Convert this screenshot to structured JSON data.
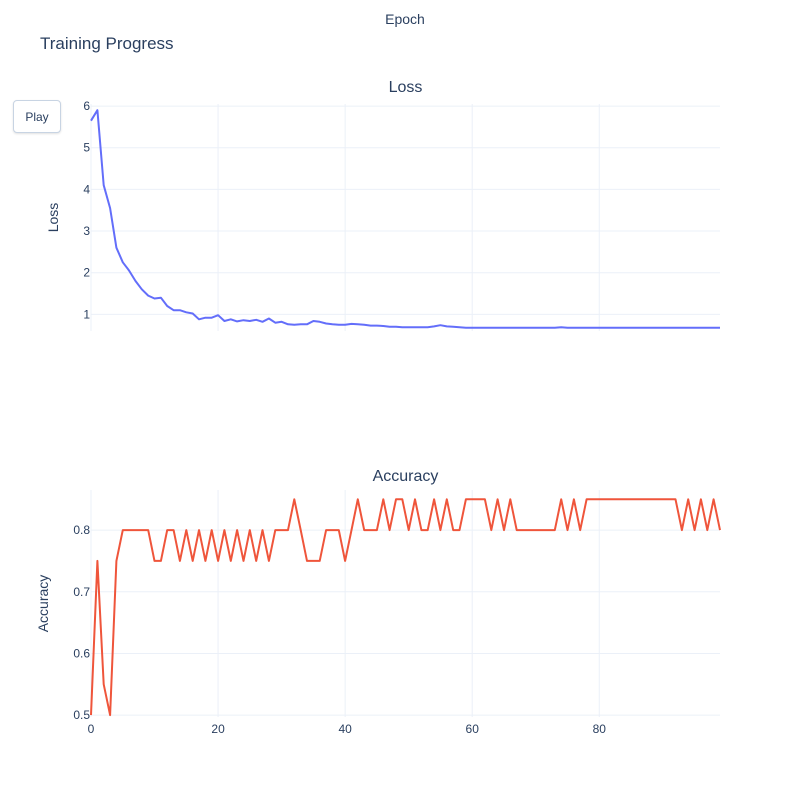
{
  "title": "Training Progress",
  "slider_label": "Epoch",
  "play_label": "Play",
  "colors": {
    "loss": "#636efa",
    "accuracy": "#ef553b",
    "grid": "#ebf0f8",
    "text": "#2a3f5f"
  },
  "chart_data": [
    {
      "type": "line",
      "title": "Loss",
      "xlabel": "",
      "ylabel": "Loss",
      "grid": true,
      "xlim": [
        0,
        99
      ],
      "ylim": [
        0.6,
        6.05
      ],
      "yticks": [
        1,
        2,
        3,
        4,
        5,
        6
      ],
      "series": [
        {
          "x": [
            0,
            1,
            2,
            3,
            4,
            5,
            6,
            7,
            8,
            9,
            10,
            11,
            12,
            13,
            14,
            15,
            16,
            17,
            18,
            19,
            20,
            21,
            22,
            23,
            24,
            25,
            26,
            27,
            28,
            29,
            30,
            31,
            32,
            33,
            34,
            35,
            36,
            37,
            38,
            39,
            40,
            41,
            42,
            43,
            44,
            45,
            46,
            47,
            48,
            49,
            50,
            51,
            52,
            53,
            54,
            55,
            56,
            57,
            58,
            59,
            60,
            61,
            62,
            63,
            64,
            65,
            66,
            67,
            68,
            69,
            70,
            71,
            72,
            73,
            74,
            75,
            76,
            77,
            78,
            79,
            80,
            81,
            82,
            83,
            84,
            85,
            86,
            87,
            88,
            89,
            90,
            91,
            92,
            93,
            94,
            95,
            96,
            97,
            98,
            99
          ],
          "values": [
            5.65,
            5.9,
            4.1,
            3.55,
            2.6,
            2.25,
            2.05,
            1.8,
            1.6,
            1.45,
            1.38,
            1.4,
            1.2,
            1.1,
            1.1,
            1.05,
            1.02,
            0.88,
            0.92,
            0.92,
            0.98,
            0.84,
            0.88,
            0.83,
            0.86,
            0.84,
            0.87,
            0.82,
            0.9,
            0.8,
            0.82,
            0.76,
            0.75,
            0.76,
            0.76,
            0.84,
            0.82,
            0.78,
            0.76,
            0.75,
            0.75,
            0.77,
            0.76,
            0.75,
            0.73,
            0.73,
            0.72,
            0.7,
            0.7,
            0.69,
            0.69,
            0.69,
            0.69,
            0.69,
            0.71,
            0.74,
            0.71,
            0.7,
            0.69,
            0.68,
            0.68,
            0.68,
            0.68,
            0.68,
            0.68,
            0.68,
            0.68,
            0.68,
            0.68,
            0.68,
            0.68,
            0.68,
            0.68,
            0.68,
            0.69,
            0.68,
            0.68,
            0.68,
            0.68,
            0.68,
            0.68,
            0.68,
            0.68,
            0.68,
            0.68,
            0.68,
            0.68,
            0.68,
            0.68,
            0.68,
            0.68,
            0.68,
            0.68,
            0.68,
            0.68,
            0.68,
            0.68,
            0.68,
            0.68,
            0.68
          ]
        }
      ]
    },
    {
      "type": "line",
      "title": "Accuracy",
      "xlabel": "",
      "ylabel": "Accuracy",
      "grid": true,
      "xlim": [
        0,
        99
      ],
      "ylim": [
        0.497,
        0.865
      ],
      "yticks": [
        0.5,
        0.6,
        0.7,
        0.8
      ],
      "xticks": [
        0,
        20,
        40,
        60,
        80
      ],
      "series": [
        {
          "x": [
            0,
            1,
            2,
            3,
            4,
            5,
            6,
            7,
            8,
            9,
            10,
            11,
            12,
            13,
            14,
            15,
            16,
            17,
            18,
            19,
            20,
            21,
            22,
            23,
            24,
            25,
            26,
            27,
            28,
            29,
            30,
            31,
            32,
            33,
            34,
            35,
            36,
            37,
            38,
            39,
            40,
            41,
            42,
            43,
            44,
            45,
            46,
            47,
            48,
            49,
            50,
            51,
            52,
            53,
            54,
            55,
            56,
            57,
            58,
            59,
            60,
            61,
            62,
            63,
            64,
            65,
            66,
            67,
            68,
            69,
            70,
            71,
            72,
            73,
            74,
            75,
            76,
            77,
            78,
            79,
            80,
            81,
            82,
            83,
            84,
            85,
            86,
            87,
            88,
            89,
            90,
            91,
            92,
            93,
            94,
            95,
            96,
            97,
            98,
            99
          ],
          "values": [
            0.5,
            0.75,
            0.55,
            0.5,
            0.75,
            0.8,
            0.8,
            0.8,
            0.8,
            0.8,
            0.75,
            0.75,
            0.8,
            0.8,
            0.75,
            0.8,
            0.75,
            0.8,
            0.75,
            0.8,
            0.75,
            0.8,
            0.75,
            0.8,
            0.75,
            0.8,
            0.75,
            0.8,
            0.75,
            0.8,
            0.8,
            0.8,
            0.85,
            0.8,
            0.75,
            0.75,
            0.75,
            0.8,
            0.8,
            0.8,
            0.75,
            0.8,
            0.85,
            0.8,
            0.8,
            0.8,
            0.85,
            0.8,
            0.85,
            0.85,
            0.8,
            0.85,
            0.8,
            0.8,
            0.85,
            0.8,
            0.85,
            0.8,
            0.8,
            0.85,
            0.85,
            0.85,
            0.85,
            0.8,
            0.85,
            0.8,
            0.85,
            0.8,
            0.8,
            0.8,
            0.8,
            0.8,
            0.8,
            0.8,
            0.85,
            0.8,
            0.85,
            0.8,
            0.85,
            0.85,
            0.85,
            0.85,
            0.85,
            0.85,
            0.85,
            0.85,
            0.85,
            0.85,
            0.85,
            0.85,
            0.85,
            0.85,
            0.85,
            0.8,
            0.85,
            0.8,
            0.85,
            0.8,
            0.85,
            0.8
          ]
        }
      ]
    }
  ]
}
